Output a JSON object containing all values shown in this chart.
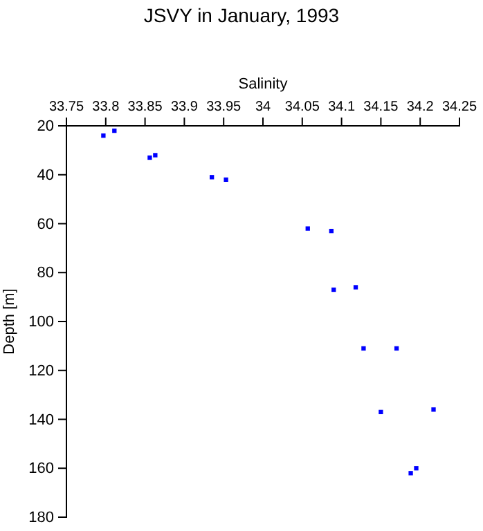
{
  "chart_data": {
    "type": "scatter",
    "title": "JSVY in January, 1993",
    "xlabel": "Salinity",
    "ylabel": "Depth [m]",
    "x": [
      33.797,
      33.811,
      33.856,
      33.863,
      33.935,
      33.953,
      34.057,
      34.087,
      34.09,
      34.118,
      34.128,
      34.17,
      34.15,
      34.217,
      34.188,
      34.195
    ],
    "series": [
      {
        "color": "#0000ff",
        "values": [
          24,
          22,
          33,
          32,
          41,
          42,
          62,
          63,
          87,
          86,
          111,
          111,
          137,
          136,
          162,
          160
        ]
      }
    ],
    "xlim": [
      33.75,
      34.25
    ],
    "xticks": [
      33.75,
      33.8,
      33.85,
      33.9,
      33.95,
      34,
      34.05,
      34.1,
      34.15,
      34.2,
      34.25
    ],
    "ylim": [
      180,
      20
    ],
    "yticks": [
      20,
      40,
      60,
      80,
      100,
      120,
      140,
      160,
      180
    ],
    "marker": "square",
    "grid": false
  }
}
